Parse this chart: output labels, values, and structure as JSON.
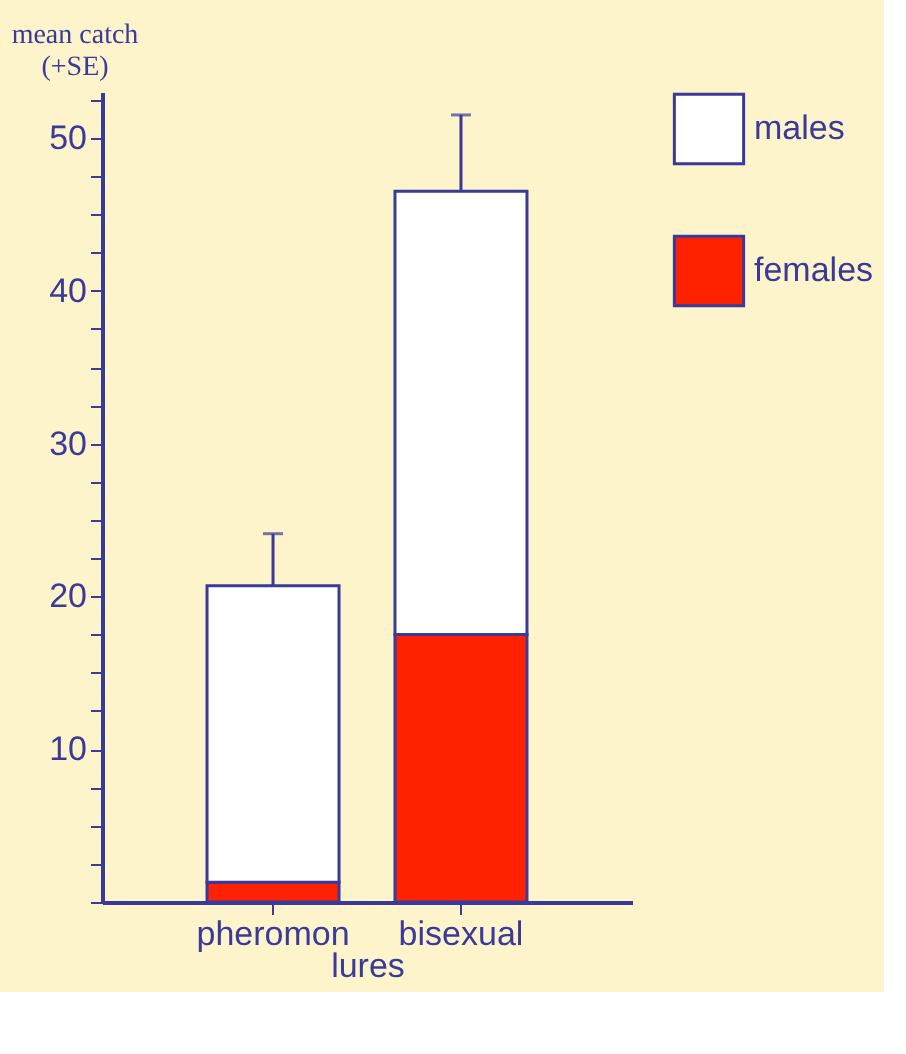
{
  "chart_data": {
    "type": "bar",
    "ylabel": "mean catch (+SE)",
    "xlabel": "lures",
    "categories": [
      "pheromon",
      "bisexual"
    ],
    "stacked": true,
    "series": [
      {
        "name": "females",
        "color": "#ff2200",
        "values": [
          1.3,
          17.5
        ]
      },
      {
        "name": "males",
        "color": "#ffffff",
        "values": [
          19.4,
          29.0
        ],
        "errors": [
          3.4,
          5.0
        ]
      }
    ],
    "ylim": [
      0,
      53
    ],
    "yticks": [
      {
        "value": 0,
        "label": null
      },
      {
        "value": 2.5,
        "label": null
      },
      {
        "value": 5,
        "label": null
      },
      {
        "value": 7.5,
        "label": null
      },
      10,
      {
        "value": 12.5,
        "label": null
      },
      {
        "value": 15,
        "label": null
      },
      {
        "value": 17.5,
        "label": null
      },
      20,
      {
        "value": 22.5,
        "label": null
      },
      {
        "value": 25,
        "label": null
      },
      {
        "value": 27.5,
        "label": null
      },
      30,
      {
        "value": 32.5,
        "label": null
      },
      {
        "value": 35,
        "label": null
      },
      {
        "value": 37.5,
        "label": null
      },
      40,
      {
        "value": 42.5,
        "label": null
      },
      {
        "value": 45,
        "label": null
      },
      {
        "value": 47.5,
        "label": null
      },
      50,
      {
        "value": 52.5,
        "label": null
      }
    ],
    "grid": false,
    "legend": "right"
  }
}
